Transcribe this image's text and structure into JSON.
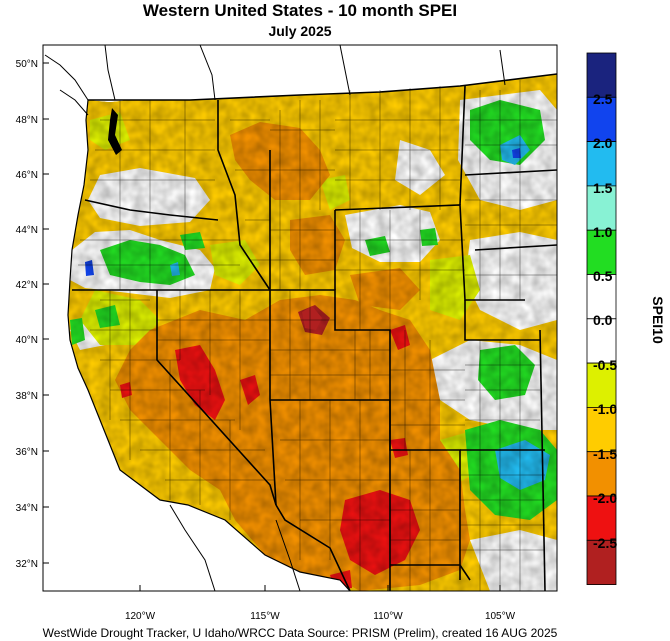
{
  "title": "Western United States - 10 month SPEI",
  "subtitle": "July 2025",
  "footer": "WestWide Drought Tracker, U Idaho/WRCC Data Source: PRISM (Prelim), created 16 AUG 2025",
  "map": {
    "lat_ticks": [
      "50°N",
      "48°N",
      "46°N",
      "44°N",
      "42°N",
      "40°N",
      "38°N",
      "36°N",
      "34°N",
      "32°N"
    ],
    "lon_ticks": [
      "120°W",
      "115°W",
      "110°W",
      "105°W"
    ]
  },
  "legend": {
    "label": "SPEI10",
    "tick_labels": [
      "2.5",
      "2.0",
      "1.5",
      "1.0",
      "0.5",
      "0.0",
      "-0.5",
      "-1.0",
      "-1.5",
      "-2.0",
      "-2.5"
    ],
    "bins": [
      {
        "color": "#1a237e"
      },
      {
        "color": "#1144ee"
      },
      {
        "color": "#22bbf0"
      },
      {
        "color": "#88f2d4"
      },
      {
        "color": "#22dd22"
      },
      {
        "color": "#ffffff"
      },
      {
        "color": "#ffffff"
      },
      {
        "color": "#ddf000"
      },
      {
        "color": "#ffcc00"
      },
      {
        "color": "#f29000"
      },
      {
        "color": "#ee1111"
      },
      {
        "color": "#b02020"
      }
    ]
  },
  "colors": {
    "dry_moderate": "#ffcc00",
    "dry_light": "#ddf000",
    "dry_severe": "#f29000",
    "dry_extreme": "#ee1111",
    "wet_moderate": "#22dd22",
    "wet_strong": "#22bbf0",
    "wet_high": "#1144ee"
  }
}
